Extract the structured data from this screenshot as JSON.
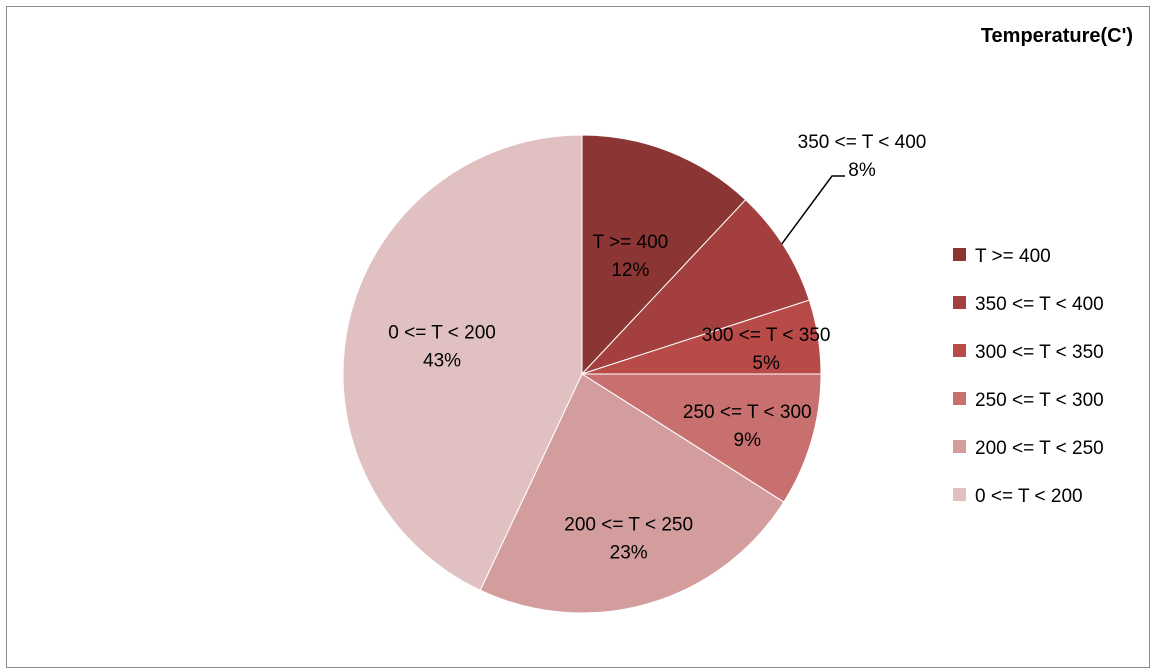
{
  "chart_data": {
    "type": "pie",
    "title": "Temperature(C')",
    "legend": "right",
    "slices": [
      {
        "label": "T >= 400",
        "value": 12,
        "percent_label": "12%",
        "color": "#8B3535"
      },
      {
        "label": "350 <= T < 400",
        "value": 8,
        "percent_label": "8%",
        "color": "#A3403F"
      },
      {
        "label": "300 <= T < 350",
        "value": 5,
        "percent_label": "5%",
        "color": "#B84A48"
      },
      {
        "label": "250 <= T < 300",
        "value": 9,
        "percent_label": "9%",
        "color": "#C87070"
      },
      {
        "label": "200 <= T < 250",
        "value": 23,
        "percent_label": "23%",
        "color": "#D49D9D"
      },
      {
        "label": "0 <= T < 200",
        "value": 43,
        "percent_label": "43%",
        "color": "#E1C0C2"
      }
    ]
  }
}
